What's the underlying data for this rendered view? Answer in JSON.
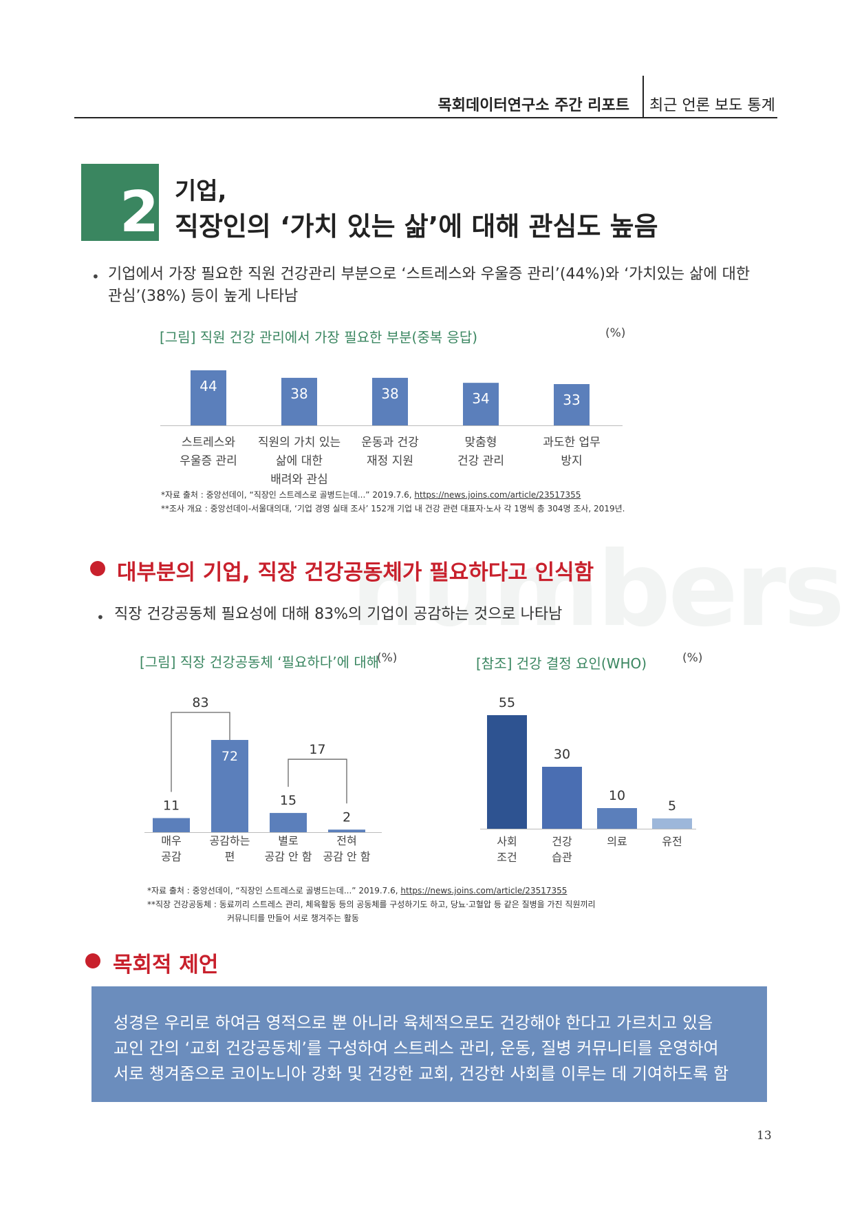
{
  "header": {
    "report_title": "목회데이터연구소 주간 리포트",
    "section_label": "최근 언론 보도 통계"
  },
  "section": {
    "number": "2",
    "title_line1": "기업,",
    "title_line2": "직장인의 ‘가치 있는 삶’에 대해 관심도 높음"
  },
  "bullet1": {
    "marker": "•",
    "line1": "기업에서 가장 필요한 직원 건강관리 부분으로 ‘스트레스와 우울증 관리’(44%)와 ‘가치있는 삶에 대한",
    "line2": "관심’(38%) 등이 높게 나타남"
  },
  "fig1": {
    "title": "[그림] 직원 건강 관리에서 가장 필요한 부분(중복 응답)",
    "unit": "(%)",
    "note1_prefix": "*자료 출처 : 중앙선데이, “직장인 스트레스로 골병드는데...” 2019.7.6, ",
    "note1_link": "https://news.joins.com/article/23517355",
    "note2": "**조사 개요 : 중앙선데이-서울대의대, ‘기업 경영 실태 조사’ 152개 기업 내 건강 관련 대표자·노사 각 1명씩 총 304명 조사, 2019년."
  },
  "section2": {
    "heading": "대부분의 기업, 직장 건강공동체가 필요하다고 인식함"
  },
  "bullet2": {
    "marker": "•",
    "line1": "직장 건강공동체 필요성에 대해 83%의 기업이 공감하는 것으로 나타남"
  },
  "fig2": {
    "title": "[그림] 직장 건강공동체 ‘필요하다’에 대해",
    "unit": "(%)",
    "note1_prefix": "*자료 출처 : 중앙선데이, “직장인 스트레스로 골병드는데...” 2019.7.6, ",
    "note1_link": "https://news.joins.com/article/23517355",
    "note2": "**직장 건강공동체 : 동료끼리 스트레스 관리, 체육활동 등의 공동체를 구성하기도 하고, 당뇨·고혈압 등 같은 질병을 가진 직원끼리",
    "note3": "커뮤니티를 만들어 서로 챙겨주는 활동"
  },
  "fig3": {
    "title": "[참조] 건강 결정 요인(WHO)",
    "unit": "(%)"
  },
  "section3": {
    "heading": "목회적 제언"
  },
  "proposal": {
    "line1": "성경은 우리로 하여금 영적으로 뿐 아니라 육체적으로도 건강해야 한다고 가르치고 있음",
    "line2": "교인 간의 ‘교회 건강공동체’를 구성하여 스트레스 관리, 운동, 질병 커뮤니티를 운영하여",
    "line3": "서로 챙겨줌으로 코이노니아 강화 및 건강한 교회, 건강한 사회를 이루는 데 기여하도록 함"
  },
  "watermark": "numbers",
  "page_number": "13",
  "colors": {
    "green": "#3a8660",
    "red": "#c8202c",
    "bar_blue": "#5b7fbb",
    "dark_blue": "#2e5391",
    "mid_blue": "#4a6eb2",
    "light_blue": "#9db7da",
    "box_blue": "#6b8dbd"
  },
  "chart_data": [
    {
      "type": "bar",
      "title": "[그림] 직원 건강 관리에서 가장 필요한 부분(중복 응답)",
      "unit": "(%)",
      "categories": [
        [
          "스트레스와",
          "우울증 관리"
        ],
        [
          "직원의 가치 있는",
          "삶에 대한",
          "배려와 관심"
        ],
        [
          "운동과 건강",
          "재정 지원"
        ],
        [
          "맞춤형",
          "건강 관리"
        ],
        [
          "과도한 업무",
          "방지"
        ]
      ],
      "values": [
        44,
        38,
        38,
        34,
        33
      ],
      "ylim": [
        0,
        50
      ],
      "grid": false
    },
    {
      "type": "bar",
      "title": "[그림] 직장 건강공동체 ‘필요하다’에 대해",
      "unit": "(%)",
      "categories": [
        [
          "매우",
          "공감"
        ],
        [
          "공감하는",
          "편"
        ],
        [
          "별로",
          "공감 안 함"
        ],
        [
          "전혀",
          "공감 안 함"
        ]
      ],
      "values": [
        11,
        72,
        15,
        2
      ],
      "ylim": [
        0,
        80
      ],
      "groups": [
        {
          "label": "83",
          "members": [
            0,
            1
          ]
        },
        {
          "label": "17",
          "members": [
            2,
            3
          ]
        }
      ],
      "grid": false
    },
    {
      "type": "bar",
      "title": "[참조] 건강 결정 요인(WHO)",
      "unit": "(%)",
      "categories": [
        [
          "사회",
          "조건"
        ],
        [
          "건강",
          "습관"
        ],
        [
          "의료"
        ],
        [
          "유전"
        ]
      ],
      "values": [
        55,
        30,
        10,
        5
      ],
      "ylim": [
        0,
        60
      ],
      "grid": false
    }
  ]
}
